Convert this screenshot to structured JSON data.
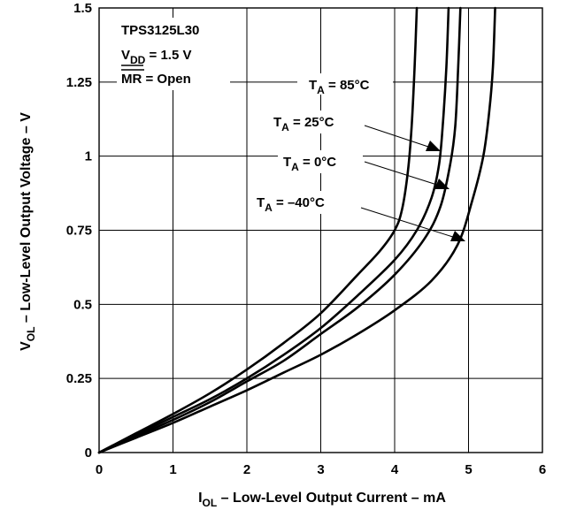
{
  "chart_data": {
    "type": "line",
    "xlabel": {
      "main": "I",
      "sub": "OL",
      "rest": " – Low-Level Output Current – mA"
    },
    "ylabel": {
      "main": "V",
      "sub": "OL",
      "rest": " – Low-Level Output Voltage – V"
    },
    "xlim": [
      0,
      6
    ],
    "ylim": [
      0,
      1.5
    ],
    "x_ticks": [
      0,
      1,
      2,
      3,
      4,
      5,
      6
    ],
    "x_tick_labels": [
      "0",
      "1",
      "2",
      "3",
      "4",
      "5",
      "6"
    ],
    "y_ticks": [
      0,
      0.25,
      0.5,
      0.75,
      1,
      1.25,
      1.5
    ],
    "y_tick_labels": [
      "0",
      "0.25",
      "0.5",
      "0.75",
      "1",
      "1.25",
      "1.5"
    ],
    "grid": true,
    "conditions": {
      "device": "TPS3125L30",
      "vdd": {
        "main": "V",
        "sub": "DD",
        "rest": " = 1.5 V"
      },
      "mr": {
        "main": "MR",
        "rest": " = Open"
      }
    },
    "series": [
      {
        "name": {
          "main": "T",
          "sub": "A",
          "rest": " = 85°C"
        },
        "x": [
          0,
          0.5,
          1,
          1.5,
          2,
          2.5,
          3,
          3.5,
          3.8,
          4.0,
          4.1,
          4.18,
          4.23,
          4.27,
          4.3
        ],
        "y": [
          0,
          0.065,
          0.13,
          0.2,
          0.28,
          0.37,
          0.47,
          0.6,
          0.68,
          0.75,
          0.82,
          0.95,
          1.1,
          1.3,
          1.5
        ]
      },
      {
        "name": {
          "main": "T",
          "sub": "A",
          "rest": " = 25°C"
        },
        "x": [
          0,
          0.5,
          1,
          1.5,
          2,
          2.5,
          3,
          3.5,
          4.0,
          4.3,
          4.5,
          4.6,
          4.65,
          4.7,
          4.73
        ],
        "y": [
          0,
          0.06,
          0.12,
          0.18,
          0.25,
          0.33,
          0.42,
          0.53,
          0.65,
          0.75,
          0.86,
          0.97,
          1.1,
          1.3,
          1.5
        ]
      },
      {
        "name": {
          "main": "T",
          "sub": "A",
          "rest": " = 0°C"
        },
        "x": [
          0,
          0.5,
          1,
          1.5,
          2,
          2.5,
          3,
          3.5,
          4.0,
          4.4,
          4.62,
          4.75,
          4.82,
          4.86,
          4.89
        ],
        "y": [
          0,
          0.055,
          0.11,
          0.17,
          0.24,
          0.31,
          0.4,
          0.49,
          0.6,
          0.72,
          0.83,
          0.97,
          1.1,
          1.3,
          1.5
        ]
      },
      {
        "name": {
          "main": "T",
          "sub": "A",
          "rest": " = –40°C"
        },
        "x": [
          0,
          0.5,
          1,
          1.5,
          2,
          2.5,
          3,
          3.5,
          4.0,
          4.5,
          4.85,
          5.05,
          5.2,
          5.28,
          5.33,
          5.36
        ],
        "y": [
          0,
          0.05,
          0.1,
          0.155,
          0.21,
          0.27,
          0.33,
          0.4,
          0.48,
          0.58,
          0.7,
          0.85,
          1.0,
          1.15,
          1.3,
          1.5
        ]
      }
    ]
  }
}
